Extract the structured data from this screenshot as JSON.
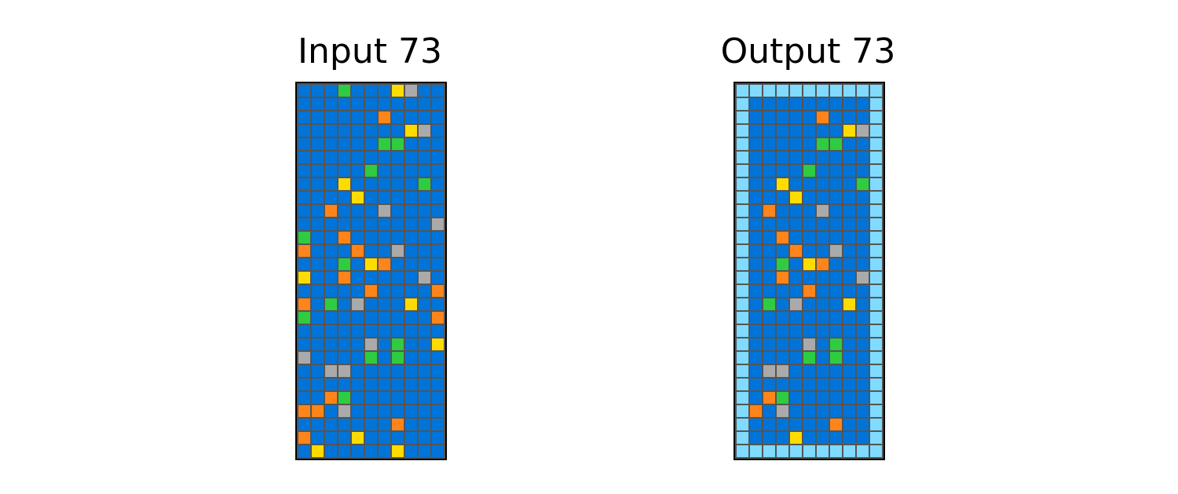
{
  "palette": {
    "0": "#000000",
    "1": "#0074D9",
    "2": "#FF4136",
    "3": "#2ECC40",
    "4": "#FFDC00",
    "5": "#AAAAAA",
    "6": "#F012BE",
    "7": "#FF851B",
    "8": "#7FDBFF",
    "9": "#870C25"
  },
  "panels": [
    {
      "title": "Input 73",
      "grid": [
        [
          1,
          1,
          1,
          3,
          1,
          1,
          1,
          4,
          5,
          1,
          1
        ],
        [
          1,
          1,
          1,
          1,
          1,
          1,
          1,
          1,
          1,
          1,
          1
        ],
        [
          1,
          1,
          1,
          1,
          1,
          1,
          7,
          1,
          1,
          1,
          1
        ],
        [
          1,
          1,
          1,
          1,
          1,
          1,
          1,
          1,
          4,
          5,
          1
        ],
        [
          1,
          1,
          1,
          1,
          1,
          1,
          3,
          3,
          1,
          1,
          1
        ],
        [
          1,
          1,
          1,
          1,
          1,
          1,
          1,
          1,
          1,
          1,
          1
        ],
        [
          1,
          1,
          1,
          1,
          1,
          3,
          1,
          1,
          1,
          1,
          1
        ],
        [
          1,
          1,
          1,
          4,
          1,
          1,
          1,
          1,
          1,
          3,
          1
        ],
        [
          1,
          1,
          1,
          1,
          4,
          1,
          1,
          1,
          1,
          1,
          1
        ],
        [
          1,
          1,
          7,
          1,
          1,
          1,
          5,
          1,
          1,
          1,
          1
        ],
        [
          1,
          1,
          1,
          1,
          1,
          1,
          1,
          1,
          1,
          1,
          5
        ],
        [
          3,
          1,
          1,
          7,
          1,
          1,
          1,
          1,
          1,
          1,
          1
        ],
        [
          7,
          1,
          1,
          1,
          7,
          1,
          1,
          5,
          1,
          1,
          1
        ],
        [
          1,
          1,
          1,
          3,
          1,
          4,
          7,
          1,
          1,
          1,
          1
        ],
        [
          4,
          1,
          1,
          7,
          1,
          1,
          1,
          1,
          1,
          5,
          1
        ],
        [
          1,
          1,
          1,
          1,
          1,
          7,
          1,
          1,
          1,
          1,
          7
        ],
        [
          7,
          1,
          3,
          1,
          5,
          1,
          1,
          1,
          4,
          1,
          1
        ],
        [
          3,
          1,
          1,
          1,
          1,
          1,
          1,
          1,
          1,
          1,
          7
        ],
        [
          1,
          1,
          1,
          1,
          1,
          1,
          1,
          1,
          1,
          1,
          1
        ],
        [
          1,
          1,
          1,
          1,
          1,
          5,
          1,
          3,
          1,
          1,
          4
        ],
        [
          5,
          1,
          1,
          1,
          1,
          3,
          1,
          3,
          1,
          1,
          1
        ],
        [
          1,
          1,
          5,
          5,
          1,
          1,
          1,
          1,
          1,
          1,
          1
        ],
        [
          1,
          1,
          1,
          1,
          1,
          1,
          1,
          1,
          1,
          1,
          1
        ],
        [
          1,
          1,
          7,
          3,
          1,
          1,
          1,
          1,
          1,
          1,
          1
        ],
        [
          7,
          7,
          1,
          5,
          1,
          1,
          1,
          1,
          1,
          1,
          1
        ],
        [
          1,
          1,
          1,
          1,
          1,
          1,
          1,
          7,
          1,
          1,
          1
        ],
        [
          7,
          1,
          1,
          1,
          4,
          1,
          1,
          1,
          1,
          1,
          1
        ],
        [
          1,
          4,
          1,
          1,
          1,
          1,
          1,
          4,
          1,
          1,
          1
        ]
      ]
    },
    {
      "title": "Output 73",
      "grid": [
        [
          8,
          8,
          8,
          8,
          8,
          8,
          8,
          8,
          8,
          8,
          8
        ],
        [
          8,
          1,
          1,
          1,
          1,
          1,
          1,
          1,
          1,
          1,
          8
        ],
        [
          8,
          1,
          1,
          1,
          1,
          1,
          7,
          1,
          1,
          1,
          8
        ],
        [
          8,
          1,
          1,
          1,
          1,
          1,
          1,
          1,
          4,
          5,
          8
        ],
        [
          8,
          1,
          1,
          1,
          1,
          1,
          3,
          3,
          1,
          1,
          8
        ],
        [
          8,
          1,
          1,
          1,
          1,
          1,
          1,
          1,
          1,
          1,
          8
        ],
        [
          8,
          1,
          1,
          1,
          1,
          3,
          1,
          1,
          1,
          1,
          8
        ],
        [
          8,
          1,
          1,
          4,
          1,
          1,
          1,
          1,
          1,
          3,
          8
        ],
        [
          8,
          1,
          1,
          1,
          4,
          1,
          1,
          1,
          1,
          1,
          8
        ],
        [
          8,
          1,
          7,
          1,
          1,
          1,
          5,
          1,
          1,
          1,
          8
        ],
        [
          8,
          1,
          1,
          1,
          1,
          1,
          1,
          1,
          1,
          1,
          8
        ],
        [
          8,
          1,
          1,
          7,
          1,
          1,
          1,
          1,
          1,
          1,
          8
        ],
        [
          8,
          1,
          1,
          1,
          7,
          1,
          1,
          5,
          1,
          1,
          8
        ],
        [
          8,
          1,
          1,
          3,
          1,
          4,
          7,
          1,
          1,
          1,
          8
        ],
        [
          8,
          1,
          1,
          7,
          1,
          1,
          1,
          1,
          1,
          5,
          8
        ],
        [
          8,
          1,
          1,
          1,
          1,
          7,
          1,
          1,
          1,
          1,
          8
        ],
        [
          8,
          1,
          3,
          1,
          5,
          1,
          1,
          1,
          4,
          1,
          8
        ],
        [
          8,
          1,
          1,
          1,
          1,
          1,
          1,
          1,
          1,
          1,
          8
        ],
        [
          8,
          1,
          1,
          1,
          1,
          1,
          1,
          1,
          1,
          1,
          8
        ],
        [
          8,
          1,
          1,
          1,
          1,
          5,
          1,
          3,
          1,
          1,
          8
        ],
        [
          8,
          1,
          1,
          1,
          1,
          3,
          1,
          3,
          1,
          1,
          8
        ],
        [
          8,
          1,
          5,
          5,
          1,
          1,
          1,
          1,
          1,
          1,
          8
        ],
        [
          8,
          1,
          1,
          1,
          1,
          1,
          1,
          1,
          1,
          1,
          8
        ],
        [
          8,
          1,
          7,
          3,
          1,
          1,
          1,
          1,
          1,
          1,
          8
        ],
        [
          8,
          7,
          1,
          5,
          1,
          1,
          1,
          1,
          1,
          1,
          8
        ],
        [
          8,
          1,
          1,
          1,
          1,
          1,
          1,
          7,
          1,
          1,
          8
        ],
        [
          8,
          1,
          1,
          1,
          4,
          1,
          1,
          1,
          1,
          1,
          8
        ],
        [
          8,
          8,
          8,
          8,
          8,
          8,
          8,
          8,
          8,
          8,
          8
        ]
      ]
    }
  ]
}
